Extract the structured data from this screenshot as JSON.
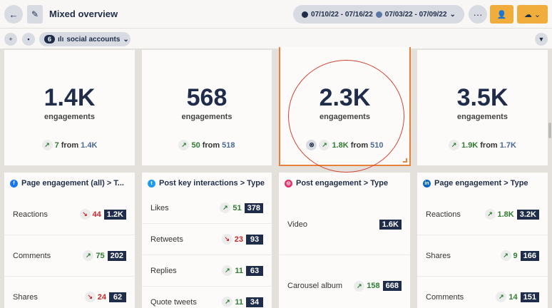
{
  "header": {
    "title": "Mixed overview",
    "date_current": "07/10/22 - 07/16/22",
    "date_previous": "07/03/22 - 07/09/22",
    "current_color": "#1f2d4a",
    "previous_color": "#5b77a8"
  },
  "toolbar": {
    "account_count": "6",
    "accounts_label": "social accounts"
  },
  "colors": {
    "accent": "#f0ad3c",
    "navy": "#1f2d4a",
    "up": "#2e7d32",
    "down": "#c62828",
    "highlight": "#e8823a"
  },
  "summary": [
    {
      "value": "1.4K",
      "label": "engagements",
      "change": "7",
      "from_label": "from",
      "previous": "1.4K",
      "direction": "up"
    },
    {
      "value": "568",
      "label": "engagements",
      "change": "50",
      "from_label": "from",
      "previous": "518",
      "direction": "up"
    },
    {
      "value": "2.3K",
      "label": "engagements",
      "change": "1.8K",
      "from_label": "from",
      "previous": "510",
      "direction": "up"
    },
    {
      "value": "3.5K",
      "label": "engagements",
      "change": "1.9K",
      "from_label": "from",
      "previous": "1.7K",
      "direction": "up"
    }
  ],
  "breakdowns": [
    {
      "network": "facebook",
      "title": "Page engagement (all) > T...",
      "rows": [
        {
          "label": "Reactions",
          "change": "44",
          "direction": "down",
          "value": "1.2K"
        },
        {
          "label": "Comments",
          "change": "75",
          "direction": "up",
          "value": "202"
        },
        {
          "label": "Shares",
          "change": "24",
          "direction": "down",
          "value": "62"
        }
      ]
    },
    {
      "network": "twitter",
      "title": "Post key interactions > Type",
      "rows": [
        {
          "label": "Likes",
          "change": "51",
          "direction": "up",
          "value": "378"
        },
        {
          "label": "Retweets",
          "change": "23",
          "direction": "down",
          "value": "93"
        },
        {
          "label": "Replies",
          "change": "11",
          "direction": "up",
          "value": "63"
        },
        {
          "label": "Quote tweets",
          "change": "11",
          "direction": "up",
          "value": "34"
        }
      ]
    },
    {
      "network": "instagram",
      "title": "Post engagement > Type",
      "rows": [
        {
          "label": "Video",
          "change": "",
          "direction": "",
          "value": "1.6K"
        },
        {
          "label": "Carousel album",
          "change": "158",
          "direction": "up",
          "value": "668"
        }
      ]
    },
    {
      "network": "linkedin",
      "title": "Page engagement > Type",
      "rows": [
        {
          "label": "Reactions",
          "change": "1.8K",
          "direction": "up",
          "value": "3.2K"
        },
        {
          "label": "Shares",
          "change": "9",
          "direction": "up",
          "value": "166"
        },
        {
          "label": "Comments",
          "change": "14",
          "direction": "up",
          "value": "151"
        }
      ]
    }
  ]
}
